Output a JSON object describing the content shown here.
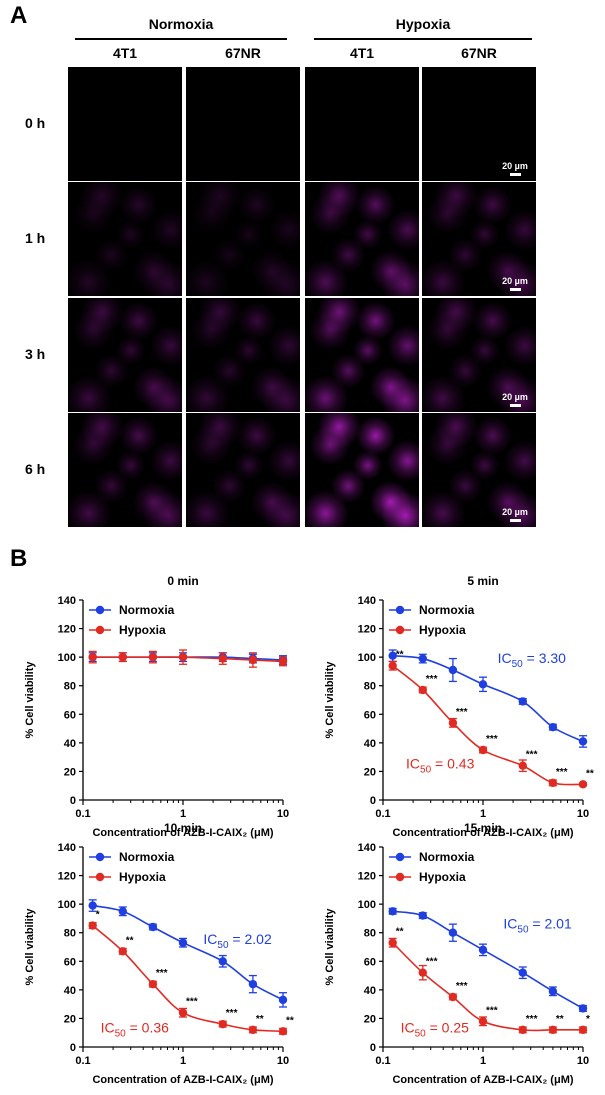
{
  "panel_a": {
    "label": "A",
    "conditions": [
      "Normoxia",
      "Hypoxia"
    ],
    "cell_lines": [
      "4T1",
      "67NR",
      "4T1",
      "67NR"
    ],
    "time_points": [
      "0 h",
      "1 h",
      "3 h",
      "6 h"
    ],
    "scale_bar": "20 µm",
    "stain_color": "#c020d0",
    "signal_levels": [
      [
        0.0,
        0.0,
        0.0,
        0.0
      ],
      [
        0.25,
        0.2,
        0.55,
        0.4
      ],
      [
        0.4,
        0.35,
        0.75,
        0.45
      ],
      [
        0.45,
        0.4,
        1.0,
        0.5
      ]
    ]
  },
  "panel_b": {
    "label": "B"
  },
  "chart_data": [
    {
      "type": "line",
      "title": "0 min",
      "xlabel": "Concentration of AZB-I-CAIX₂ (μM)",
      "ylabel": "% Cell viability",
      "xscale": "log",
      "xlim": [
        0.1,
        10
      ],
      "ylim": [
        0,
        140
      ],
      "x_ticks": [
        "0.1",
        "1",
        "10"
      ],
      "y_ticks": [
        "0",
        "20",
        "40",
        "60",
        "80",
        "100",
        "120",
        "140"
      ],
      "legend_position": "top-left",
      "x": [
        0.125,
        0.25,
        0.5,
        1,
        2.5,
        5,
        10
      ],
      "series": [
        {
          "name": "Normoxia",
          "color": "#1f3fe0",
          "values": [
            100,
            100,
            100,
            100,
            100,
            99,
            98
          ],
          "errors": [
            3,
            3,
            3,
            3,
            3,
            3,
            3
          ],
          "sig": []
        },
        {
          "name": "Hypoxia",
          "color": "#e02a22",
          "values": [
            100,
            100,
            100,
            100,
            99,
            98,
            97
          ],
          "errors": [
            4,
            3,
            4,
            5,
            4,
            5,
            3
          ],
          "sig": []
        }
      ],
      "annotations": []
    },
    {
      "type": "line",
      "title": "5 min",
      "xlabel": "Concentration of AZB-I-CAIX₂ (μM)",
      "ylabel": "% Cell viability",
      "xscale": "log",
      "xlim": [
        0.1,
        10
      ],
      "ylim": [
        0,
        140
      ],
      "x_ticks": [
        "0.1",
        "1",
        "10"
      ],
      "y_ticks": [
        "0",
        "20",
        "40",
        "60",
        "80",
        "100",
        "120",
        "140"
      ],
      "legend_position": "top-left",
      "x": [
        0.125,
        0.25,
        0.5,
        1,
        2.5,
        5,
        10
      ],
      "series": [
        {
          "name": "Normoxia",
          "color": "#1f3fe0",
          "values": [
            101,
            99,
            91,
            81,
            69,
            51,
            41
          ],
          "errors": [
            4,
            3,
            8,
            5,
            2,
            2,
            4
          ],
          "sig": []
        },
        {
          "name": "Hypoxia",
          "color": "#e02a22",
          "values": [
            94,
            77,
            54,
            35,
            24,
            12,
            11
          ],
          "errors": [
            3,
            2,
            3,
            2,
            4,
            2,
            1
          ],
          "sig": [
            "**",
            "***",
            "***",
            "***",
            "***",
            "***",
            "**"
          ]
        }
      ],
      "annotations": [
        {
          "label": "IC",
          "sub": "50",
          "value": " = 3.30",
          "color": "#1f3fe0",
          "at": [
            1.4,
            96
          ]
        },
        {
          "label": "IC",
          "sub": "50",
          "value": " = 0.43",
          "color": "#e02a22",
          "at": [
            0.17,
            22
          ]
        }
      ]
    },
    {
      "type": "line",
      "title": "10 min",
      "xlabel": "Concentration of AZB-I-CAIX₂ (μM)",
      "ylabel": "% Cell viability",
      "xscale": "log",
      "xlim": [
        0.1,
        10
      ],
      "ylim": [
        0,
        140
      ],
      "x_ticks": [
        "0.1",
        "1",
        "10"
      ],
      "y_ticks": [
        "0",
        "20",
        "40",
        "60",
        "80",
        "100",
        "120",
        "140"
      ],
      "legend_position": "top-left",
      "x": [
        0.125,
        0.25,
        0.5,
        1,
        2.5,
        5,
        10
      ],
      "series": [
        {
          "name": "Normoxia",
          "color": "#1f3fe0",
          "values": [
            99,
            95,
            84,
            73,
            60,
            44,
            33
          ],
          "errors": [
            4,
            3,
            2,
            3,
            4,
            6,
            5
          ],
          "sig": []
        },
        {
          "name": "Hypoxia",
          "color": "#e02a22",
          "values": [
            85,
            67,
            44,
            24,
            16,
            12,
            11
          ],
          "errors": [
            2,
            2,
            2,
            3,
            2,
            2,
            2
          ],
          "sig": [
            "*",
            "**",
            "***",
            "***",
            "***",
            "**",
            "**"
          ]
        }
      ],
      "annotations": [
        {
          "label": "IC",
          "sub": "50",
          "value": " = 2.02",
          "color": "#1f3fe0",
          "at": [
            1.6,
            72
          ]
        },
        {
          "label": "IC",
          "sub": "50",
          "value": " = 0.36",
          "color": "#e02a22",
          "at": [
            0.15,
            10
          ]
        }
      ]
    },
    {
      "type": "line",
      "title": "15 min",
      "xlabel": "Concentration of AZB-I-CAIX₂ (μM)",
      "ylabel": "% Cell viability",
      "xscale": "log",
      "xlim": [
        0.1,
        10
      ],
      "ylim": [
        0,
        140
      ],
      "x_ticks": [
        "0.1",
        "1",
        "10"
      ],
      "y_ticks": [
        "0",
        "20",
        "40",
        "60",
        "80",
        "100",
        "120",
        "140"
      ],
      "legend_position": "top-left",
      "x": [
        0.125,
        0.25,
        0.5,
        1,
        2.5,
        5,
        10
      ],
      "series": [
        {
          "name": "Normoxia",
          "color": "#1f3fe0",
          "values": [
            95,
            92,
            80,
            68,
            52,
            39,
            27
          ],
          "errors": [
            2,
            2,
            6,
            4,
            4,
            3,
            2
          ],
          "sig": []
        },
        {
          "name": "Hypoxia",
          "color": "#e02a22",
          "values": [
            73,
            52,
            35,
            18,
            12,
            12,
            12
          ],
          "errors": [
            3,
            5,
            2,
            3,
            2,
            2,
            2
          ],
          "sig": [
            "**",
            "***",
            "***",
            "***",
            "***",
            "**",
            "*"
          ]
        }
      ],
      "annotations": [
        {
          "label": "IC",
          "sub": "50",
          "value": " = 2.01",
          "color": "#1f3fe0",
          "at": [
            1.6,
            83
          ]
        },
        {
          "label": "IC",
          "sub": "50",
          "value": " = 0.25",
          "color": "#e02a22",
          "at": [
            0.15,
            10
          ]
        }
      ]
    }
  ]
}
